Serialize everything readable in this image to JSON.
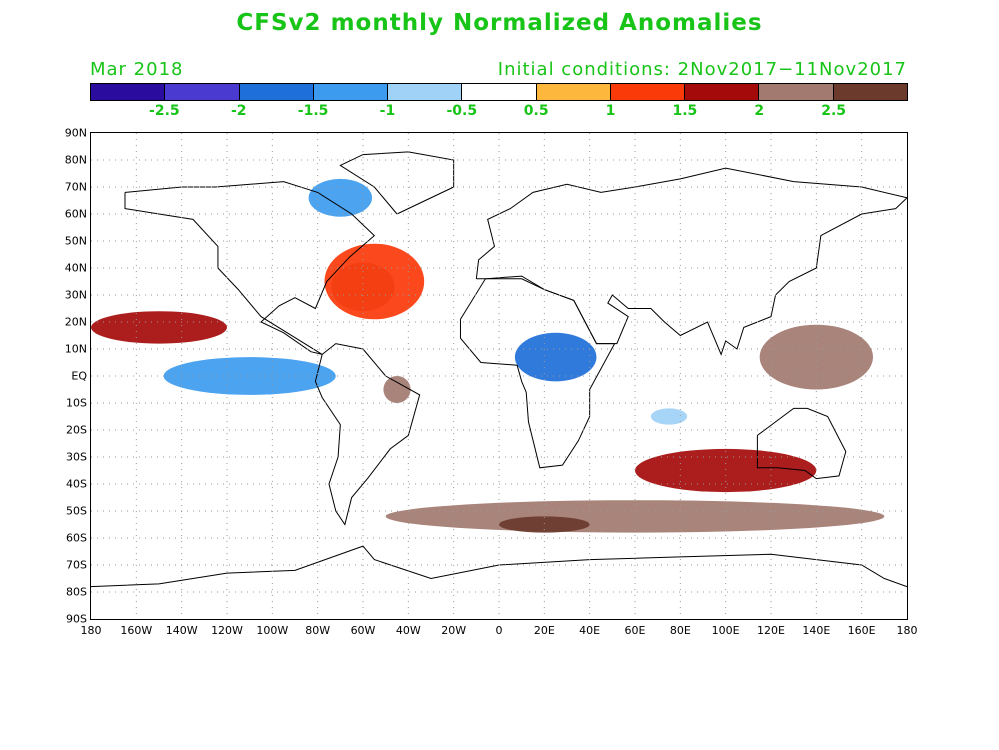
{
  "title": "CFSv2 monthly Normalized Anomalies",
  "period": "Mar 2018",
  "initial_conditions": "Initial conditions: 2Nov2017−11Nov2017",
  "colorbar": {
    "colors": [
      "#2a0d9e",
      "#4a3ad0",
      "#1e6fd9",
      "#3d9bef",
      "#a0d1f7",
      "#ffffff",
      "#fdb73c",
      "#fb3a0a",
      "#a50a0a",
      "#a27a70",
      "#6b3a2c"
    ],
    "labels": [
      "-2.5",
      "-2",
      "-1.5",
      "-1",
      "-0.5",
      "0.5",
      "1",
      "1.5",
      "2",
      "2.5"
    ]
  },
  "latitude_labels": [
    "90N",
    "80N",
    "70N",
    "60N",
    "50N",
    "40N",
    "30N",
    "20N",
    "10N",
    "EQ",
    "10S",
    "20S",
    "30S",
    "40S",
    "50S",
    "60S",
    "70S",
    "80S",
    "90S"
  ],
  "longitude_labels": [
    "180",
    "160W",
    "140W",
    "120W",
    "100W",
    "80W",
    "60W",
    "40W",
    "20W",
    "0",
    "20E",
    "40E",
    "60E",
    "80E",
    "100E",
    "120E",
    "140E",
    "160E",
    "180"
  ],
  "anomaly_regions": [
    {
      "name": "north-atlantic-warm",
      "lon": -60,
      "lat": 33,
      "rx": 14,
      "ry": 9,
      "level": 2
    },
    {
      "name": "north-atlantic-warm-outer",
      "lon": -55,
      "lat": 35,
      "rx": 22,
      "ry": 14,
      "level": 1
    },
    {
      "name": "hudson-cold",
      "lon": -70,
      "lat": 66,
      "rx": 14,
      "ry": 7,
      "level": -1.5
    },
    {
      "name": "east-pacific-cold",
      "lon": -110,
      "lat": 0,
      "rx": 38,
      "ry": 7,
      "level": -1.5
    },
    {
      "name": "central-pacific-warm",
      "lon": -150,
      "lat": 18,
      "rx": 30,
      "ry": 6,
      "level": 1.5
    },
    {
      "name": "central-africa-cold",
      "lon": 25,
      "lat": 7,
      "rx": 18,
      "ry": 9,
      "level": -2
    },
    {
      "name": "west-pacific-warm",
      "lon": 140,
      "lat": 7,
      "rx": 25,
      "ry": 12,
      "level": 2
    },
    {
      "name": "southern-ocean-band",
      "lon": 60,
      "lat": -52,
      "rx": 110,
      "ry": 6,
      "level": 2
    },
    {
      "name": "southern-ocean-extreme",
      "lon": 20,
      "lat": -55,
      "rx": 20,
      "ry": 3,
      "level": 2.5
    },
    {
      "name": "south-indian-warm",
      "lon": 100,
      "lat": -35,
      "rx": 40,
      "ry": 8,
      "level": 1.5
    },
    {
      "name": "brazil-warm",
      "lon": -45,
      "lat": -5,
      "rx": 6,
      "ry": 5,
      "level": 2
    },
    {
      "name": "indian-cold",
      "lon": 75,
      "lat": -15,
      "rx": 8,
      "ry": 3,
      "level": -1
    }
  ]
}
